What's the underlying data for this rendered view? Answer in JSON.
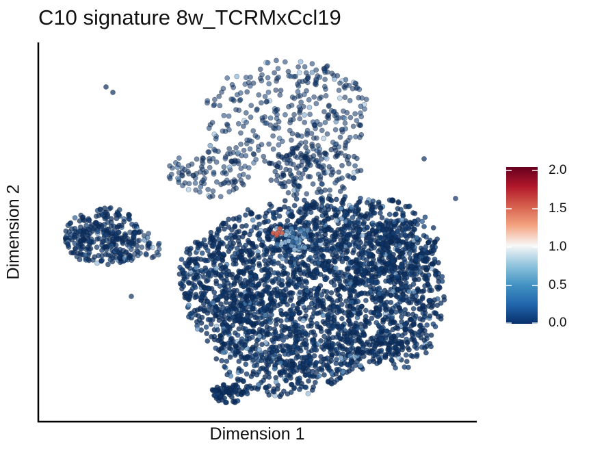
{
  "chart_data": {
    "type": "scatter",
    "title": "C10 signature 8w_TCRMxCcl19",
    "xlabel": "Dimension 1",
    "ylabel": "Dimension 2",
    "colorbar": {
      "min": 0.0,
      "max": 2.0,
      "ticks": [
        "2.0",
        "1.5",
        "1.0",
        "0.5",
        "0.0"
      ],
      "palette": [
        "#08306b",
        "#2166ac",
        "#4393c3",
        "#92c5de",
        "#f7f7f7",
        "#f4a582",
        "#d6604d",
        "#b2182b",
        "#67001f"
      ]
    },
    "point_color_default": "#0b2d5e",
    "grid": false,
    "legend_position": "right"
  }
}
